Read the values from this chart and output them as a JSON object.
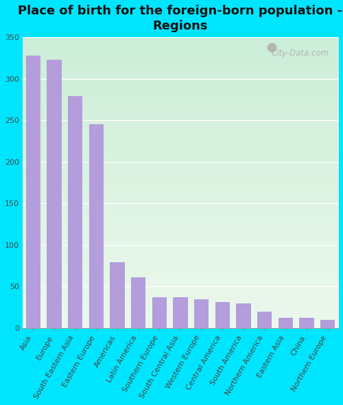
{
  "title": "Place of birth for the foreign-born population -\nRegions",
  "categories": [
    "Asia",
    "Europe",
    "South Eastern Asia",
    "Eastern Europe",
    "Americas",
    "Latin America",
    "Southern Europe",
    "South Central Asia",
    "Western Europe",
    "Central America",
    "South America",
    "Northern America",
    "Eastern Asia",
    "China",
    "Northern Europe"
  ],
  "values": [
    328,
    323,
    279,
    245,
    79,
    61,
    37,
    37,
    35,
    31,
    30,
    20,
    12,
    12,
    10
  ],
  "bar_color": "#b39ddb",
  "background_color": "#00e5ff",
  "plot_bg_topleft": "#d6f0d8",
  "plot_bg_topright": "#e8f5e0",
  "plot_bg_bottomleft": "#e0f5e8",
  "plot_bg_bottomright": "#f0faf0",
  "ylim": [
    0,
    350
  ],
  "yticks": [
    0,
    50,
    100,
    150,
    200,
    250,
    300,
    350
  ],
  "title_fontsize": 13,
  "tick_fontsize": 8,
  "watermark": "City-Data.com",
  "bar_width": 0.7
}
